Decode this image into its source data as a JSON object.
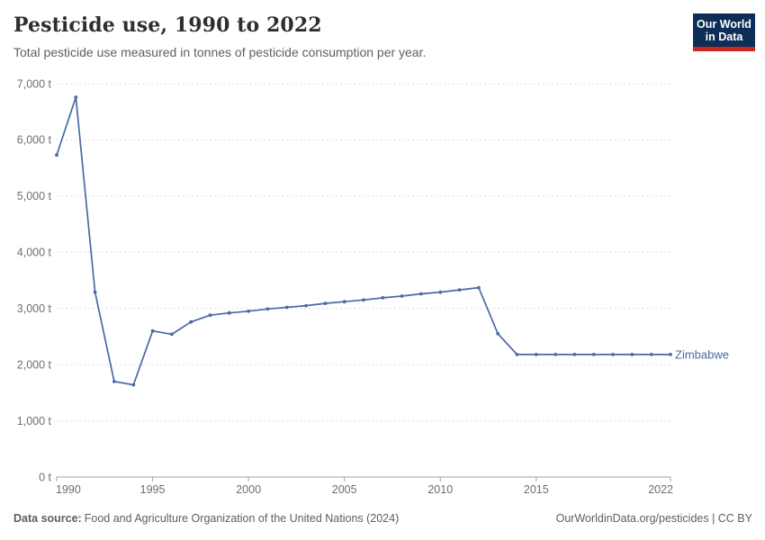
{
  "header": {
    "title": "Pesticide use, 1990 to 2022",
    "subtitle": "Total pesticide use measured in tonnes of pesticide consumption per year.",
    "logo_line1": "Our World",
    "logo_line2": "in Data"
  },
  "footer": {
    "source_label": "Data source:",
    "source_text": "Food and Agriculture Organization of the United Nations (2024)",
    "right_text": "OurWorldinData.org/pesticides | CC BY"
  },
  "colors": {
    "series_blue": "#4a69a4",
    "gridline": "#dcdcdc",
    "axis": "#a3a3a3",
    "axis_text": "#6e6e6e",
    "logo_navy": "#0d2e57",
    "logo_red": "#c8291f"
  },
  "chart_data": {
    "type": "line",
    "title": "Pesticide use, 1990 to 2022",
    "subtitle": "Total pesticide use measured in tonnes of pesticide consumption per year.",
    "unit": "t",
    "grid": "horizontal-dashed",
    "legend_position": "end-of-line",
    "xlim": [
      1990,
      2022
    ],
    "ylim": [
      0,
      7000
    ],
    "x": [
      1990,
      1991,
      1992,
      1993,
      1994,
      1995,
      1996,
      1997,
      1998,
      1999,
      2000,
      2001,
      2002,
      2003,
      2004,
      2005,
      2006,
      2007,
      2008,
      2009,
      2010,
      2011,
      2012,
      2013,
      2014,
      2015,
      2016,
      2017,
      2018,
      2019,
      2020,
      2021,
      2022
    ],
    "series": [
      {
        "name": "Zimbabwe",
        "color": "#4a69a4",
        "values": [
          5730,
          6760,
          3290,
          1700,
          1640,
          2600,
          2540,
          2760,
          2880,
          2920,
          2950,
          2990,
          3020,
          3050,
          3090,
          3120,
          3150,
          3190,
          3220,
          3260,
          3290,
          3330,
          3370,
          2550,
          2180,
          2180,
          2180,
          2180,
          2180,
          2180,
          2180,
          2180,
          2180
        ]
      }
    ],
    "y_ticks": [
      {
        "value": 0,
        "label": "0 t"
      },
      {
        "value": 1000,
        "label": "1,000 t"
      },
      {
        "value": 2000,
        "label": "2,000 t"
      },
      {
        "value": 3000,
        "label": "3,000 t"
      },
      {
        "value": 4000,
        "label": "4,000 t"
      },
      {
        "value": 5000,
        "label": "5,000 t"
      },
      {
        "value": 6000,
        "label": "6,000 t"
      },
      {
        "value": 7000,
        "label": "7,000 t"
      }
    ],
    "x_ticks": [
      {
        "value": 1990,
        "label": "1990"
      },
      {
        "value": 1995,
        "label": "1995"
      },
      {
        "value": 2000,
        "label": "2000"
      },
      {
        "value": 2005,
        "label": "2005"
      },
      {
        "value": 2010,
        "label": "2010"
      },
      {
        "value": 2015,
        "label": "2015"
      },
      {
        "value": 2022,
        "label": "2022"
      }
    ]
  }
}
